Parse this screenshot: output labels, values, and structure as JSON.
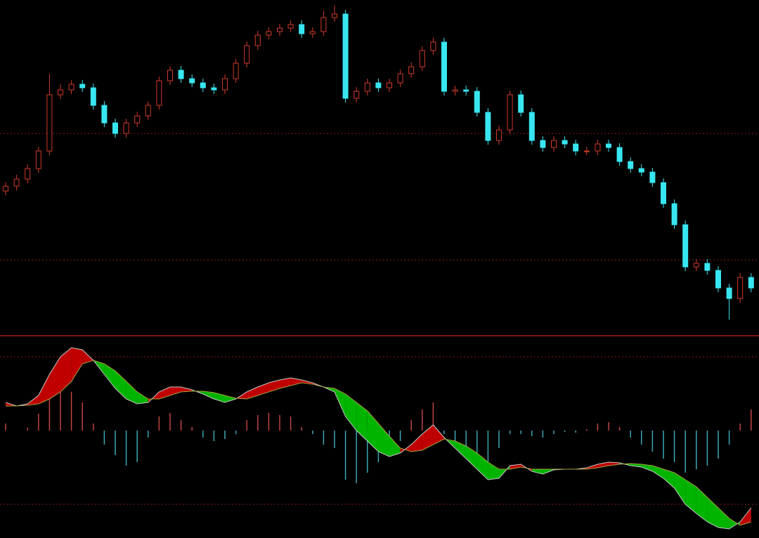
{
  "chart_data": [
    {
      "type": "candlestick",
      "ylim": [
        2,
        480
      ],
      "yticks": [
        110,
        290
      ],
      "grid": true,
      "grid_color": "#8a1c1c",
      "up_color": "#d03a2a",
      "down_color": "#38e6f0",
      "open": [
        208,
        215,
        225,
        240,
        265,
        345,
        352,
        360,
        355,
        330,
        305,
        290,
        305,
        315,
        330,
        365,
        380,
        368,
        362,
        355,
        352,
        368,
        390,
        415,
        430,
        435,
        440,
        445,
        432,
        435,
        455,
        460,
        340,
        350,
        362,
        355,
        362,
        375,
        385,
        408,
        420,
        350,
        352,
        350,
        320,
        280,
        295,
        345,
        320,
        280,
        270,
        280,
        275,
        265,
        265,
        275,
        270,
        250,
        240,
        235,
        220,
        190,
        160,
        100,
        105,
        95,
        70,
        55,
        85
      ],
      "high": [
        221,
        231,
        246,
        271,
        375,
        360,
        366,
        366,
        361,
        336,
        311,
        311,
        321,
        336,
        371,
        386,
        386,
        374,
        368,
        361,
        374,
        396,
        421,
        436,
        441,
        446,
        451,
        451,
        441,
        465,
        472,
        466,
        356,
        368,
        368,
        368,
        381,
        391,
        414,
        426,
        426,
        358,
        358,
        356,
        326,
        301,
        351,
        351,
        326,
        286,
        286,
        286,
        281,
        271,
        281,
        281,
        276,
        256,
        246,
        241,
        226,
        196,
        166,
        111,
        111,
        101,
        76,
        91,
        91
      ],
      "low": [
        202,
        209,
        219,
        234,
        259,
        339,
        346,
        349,
        324,
        299,
        284,
        284,
        299,
        309,
        324,
        359,
        362,
        356,
        349,
        346,
        346,
        362,
        384,
        409,
        424,
        429,
        434,
        426,
        426,
        429,
        449,
        334,
        334,
        344,
        349,
        349,
        356,
        369,
        379,
        402,
        344,
        344,
        344,
        314,
        274,
        274,
        289,
        314,
        274,
        264,
        264,
        269,
        259,
        259,
        259,
        264,
        244,
        234,
        229,
        214,
        184,
        154,
        94,
        94,
        89,
        64,
        25,
        49,
        64
      ],
      "close": [
        215,
        225,
        240,
        265,
        345,
        352,
        360,
        355,
        330,
        305,
        290,
        305,
        315,
        330,
        365,
        380,
        368,
        362,
        355,
        352,
        368,
        390,
        415,
        430,
        435,
        440,
        445,
        432,
        435,
        455,
        460,
        340,
        350,
        362,
        355,
        362,
        375,
        385,
        408,
        420,
        350,
        352,
        350,
        320,
        280,
        295,
        345,
        320,
        280,
        270,
        280,
        275,
        265,
        265,
        275,
        270,
        250,
        240,
        235,
        220,
        190,
        160,
        100,
        105,
        95,
        70,
        55,
        85,
        70
      ]
    },
    {
      "type": "macd",
      "ylim": [
        -153,
        133
      ],
      "yticks": [
        105,
        -105
      ],
      "grid": true,
      "grid_color": "#8a1c1c",
      "band_up_color": "#c00000",
      "band_down_color": "#00b400",
      "hist_up_color": "#c04444",
      "hist_down_color": "#3aa8b4",
      "series": [
        {
          "color": "#c8c8c8",
          "values": [
            40,
            35,
            38,
            50,
            80,
            105,
            118,
            115,
            100,
            80,
            60,
            45,
            38,
            40,
            55,
            62,
            62,
            58,
            52,
            45,
            40,
            45,
            55,
            62,
            68,
            72,
            75,
            72,
            68,
            62,
            55,
            20,
            0,
            -15,
            -30,
            -37,
            -32,
            -20,
            -5,
            8,
            -10,
            -25,
            -40,
            -55,
            -70,
            -68,
            -50,
            -48,
            -58,
            -62,
            -56,
            -55,
            -55,
            -53,
            -48,
            -45,
            -46,
            -50,
            -52,
            -58,
            -68,
            -82,
            -105,
            -118,
            -130,
            -138,
            -140,
            -130,
            -110
          ]
        },
        {
          "color": "#a8a040",
          "values": [
            35,
            35,
            36,
            38,
            45,
            55,
            70,
            95,
            100,
            95,
            85,
            70,
            55,
            45,
            45,
            50,
            55,
            56,
            56,
            54,
            50,
            46,
            45,
            50,
            55,
            60,
            64,
            68,
            66,
            62,
            60,
            52,
            40,
            28,
            10,
            -8,
            -25,
            -30,
            -28,
            -20,
            -12,
            -15,
            -22,
            -32,
            -45,
            -55,
            -55,
            -52,
            -55,
            -55,
            -55,
            -55,
            -55,
            -55,
            -53,
            -50,
            -48,
            -47,
            -48,
            -50,
            -55,
            -60,
            -70,
            -80,
            -95,
            -110,
            -125,
            -135,
            -130
          ]
        }
      ],
      "hist": [
        10,
        0,
        4,
        24,
        60,
        65,
        55,
        40,
        10,
        -20,
        -35,
        -50,
        -45,
        -10,
        20,
        25,
        15,
        5,
        -10,
        -15,
        -12,
        -5,
        15,
        22,
        25,
        22,
        20,
        5,
        -5,
        -20,
        -25,
        -70,
        -75,
        -60,
        -45,
        -35,
        -15,
        15,
        30,
        40,
        -5,
        -20,
        -35,
        -45,
        -45,
        -25,
        -5,
        -5,
        -8,
        -10,
        -5,
        -2,
        -3,
        2,
        10,
        12,
        5,
        -10,
        -20,
        -30,
        -40,
        -45,
        -60,
        -55,
        -50,
        -40,
        -20,
        10,
        30
      ]
    }
  ]
}
